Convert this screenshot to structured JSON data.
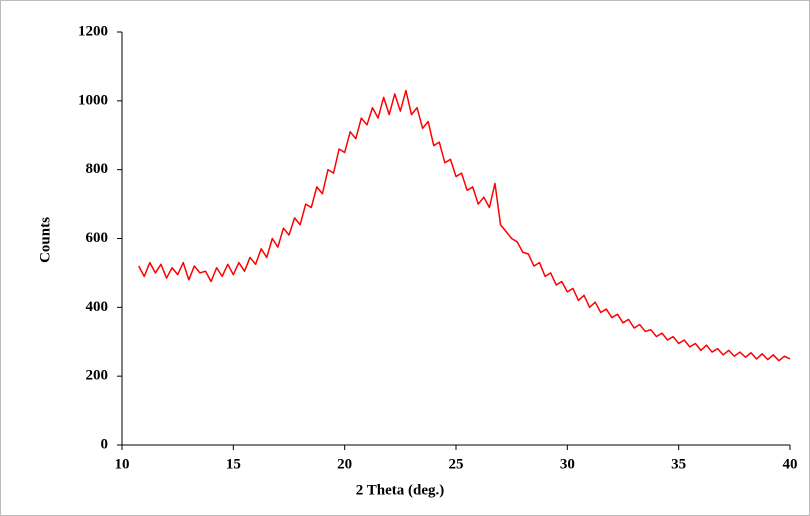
{
  "chart_data": {
    "type": "line",
    "x_label": "2 Theta (deg.)",
    "y_label": "Counts",
    "xlim": [
      10,
      40
    ],
    "xticks": [
      10,
      15,
      20,
      25,
      30,
      35,
      40
    ],
    "ylim": [
      0,
      1200
    ],
    "yticks": [
      0,
      200,
      400,
      600,
      800,
      1000,
      1200
    ],
    "grid": false,
    "series": [
      {
        "name": "Counts",
        "color": "#ff0000",
        "x": [
          10.75,
          11,
          11.25,
          11.5,
          11.75,
          12,
          12.25,
          12.5,
          12.75,
          13,
          13.25,
          13.5,
          13.75,
          14,
          14.25,
          14.5,
          14.75,
          15,
          15.25,
          15.5,
          15.75,
          16,
          16.25,
          16.5,
          16.75,
          17,
          17.25,
          17.5,
          17.75,
          18,
          18.25,
          18.5,
          18.75,
          19,
          19.25,
          19.5,
          19.75,
          20,
          20.25,
          20.5,
          20.75,
          21,
          21.25,
          21.5,
          21.75,
          22,
          22.25,
          22.5,
          22.75,
          23,
          23.25,
          23.5,
          23.75,
          24,
          24.25,
          24.5,
          24.75,
          25,
          25.25,
          25.5,
          25.75,
          26,
          26.25,
          26.5,
          26.75,
          27,
          27.25,
          27.5,
          27.75,
          28,
          28.25,
          28.5,
          28.75,
          29,
          29.25,
          29.5,
          29.75,
          30,
          30.25,
          30.5,
          30.75,
          31,
          31.25,
          31.5,
          31.75,
          32,
          32.25,
          32.5,
          32.75,
          33,
          33.25,
          33.5,
          33.75,
          34,
          34.25,
          34.5,
          34.75,
          35,
          35.25,
          35.5,
          35.75,
          36,
          36.25,
          36.5,
          36.75,
          37,
          37.25,
          37.5,
          37.75,
          38,
          38.25,
          38.5,
          38.75,
          39,
          39.25,
          39.5,
          39.75,
          40
        ],
        "values": [
          520,
          490,
          530,
          500,
          525,
          485,
          515,
          495,
          530,
          480,
          520,
          500,
          505,
          475,
          515,
          490,
          525,
          495,
          530,
          505,
          545,
          525,
          570,
          545,
          600,
          575,
          630,
          610,
          660,
          640,
          700,
          690,
          750,
          730,
          800,
          790,
          860,
          850,
          910,
          890,
          950,
          930,
          980,
          950,
          1010,
          960,
          1020,
          970,
          1030,
          960,
          980,
          920,
          940,
          870,
          880,
          820,
          830,
          780,
          790,
          740,
          750,
          700,
          720,
          690,
          760,
          640,
          620,
          600,
          590,
          560,
          555,
          520,
          530,
          490,
          500,
          465,
          475,
          445,
          455,
          420,
          435,
          400,
          415,
          385,
          395,
          370,
          380,
          355,
          365,
          340,
          350,
          330,
          335,
          315,
          325,
          305,
          315,
          295,
          305,
          285,
          295,
          275,
          290,
          270,
          280,
          262,
          275,
          258,
          270,
          255,
          268,
          250,
          265,
          248,
          262,
          245,
          258,
          250
        ]
      }
    ]
  }
}
